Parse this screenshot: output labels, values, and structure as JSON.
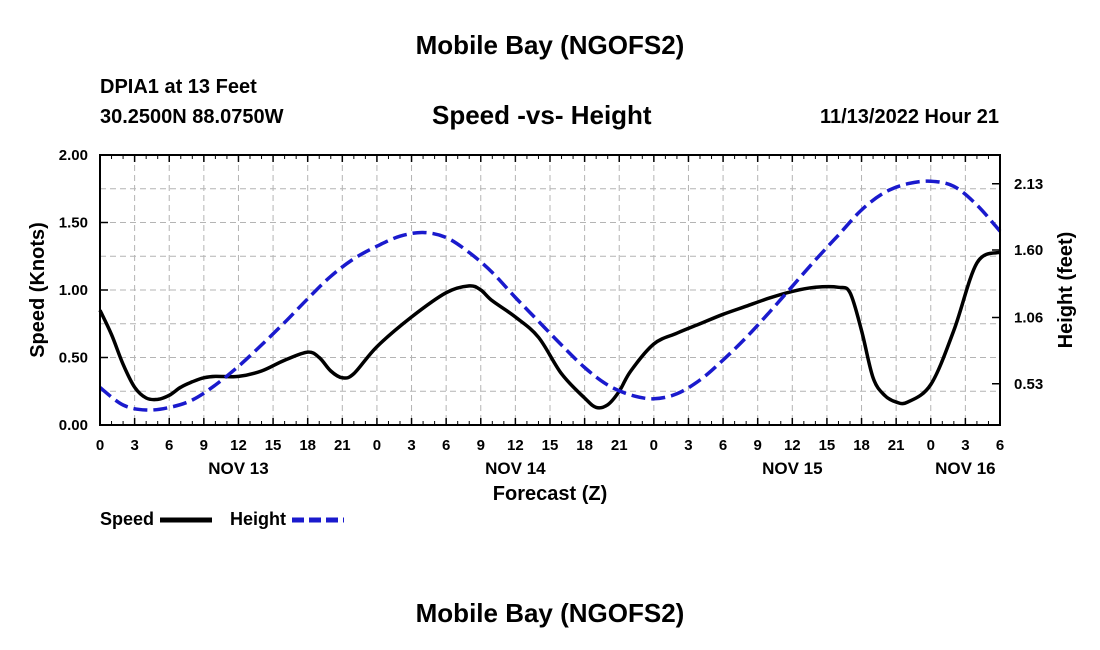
{
  "header": {
    "title": "Mobile Bay (NGOFS2)",
    "station": "DPIA1 at 13 Feet",
    "coords": "30.2500N  88.0750W",
    "subtitle": "Speed -vs- Height",
    "datetime": "11/13/2022 Hour 21"
  },
  "footer": {
    "title": "Mobile Bay (NGOFS2)"
  },
  "chart_data": {
    "type": "line",
    "xlabel": "Forecast (Z)",
    "ylabel": "Speed (Knots)",
    "y2label": "Height (feet)",
    "x_unit": "hours since NOV 13 00Z",
    "xlim": [
      0,
      78
    ],
    "ylim": [
      0,
      2.0
    ],
    "y2lim": [
      0.2,
      2.36
    ],
    "grid": true,
    "x_tick_hours": [
      0,
      3,
      6,
      9,
      12,
      15,
      18,
      21,
      24,
      27,
      30,
      33,
      36,
      39,
      42,
      45,
      48,
      51,
      54,
      57,
      60,
      63,
      66,
      69,
      72,
      75,
      78
    ],
    "x_tick_labels": [
      "0",
      "3",
      "6",
      "9",
      "12",
      "15",
      "18",
      "21",
      "0",
      "3",
      "6",
      "9",
      "12",
      "15",
      "18",
      "21",
      "0",
      "3",
      "6",
      "9",
      "12",
      "15",
      "18",
      "21",
      "0",
      "3",
      "6"
    ],
    "day_labels": [
      {
        "hour": 12,
        "label": "NOV 13"
      },
      {
        "hour": 36,
        "label": "NOV 14"
      },
      {
        "hour": 60,
        "label": "NOV 15"
      },
      {
        "hour": 75,
        "label": "NOV 16"
      }
    ],
    "y_ticks": [
      "0.00",
      "0.50",
      "1.00",
      "1.50",
      "2.00"
    ],
    "y2_ticks": [
      "0.53",
      "1.06",
      "1.60",
      "2.13"
    ],
    "legend": {
      "placement": "bottom-left"
    },
    "series": [
      {
        "name": "Speed",
        "axis": "left",
        "color": "#000000",
        "dash": "solid",
        "x": [
          0,
          1,
          2,
          3,
          4,
          5,
          6,
          7,
          8,
          9,
          10,
          12,
          14,
          16,
          18,
          19,
          20,
          21,
          22,
          24,
          27,
          30,
          32,
          33,
          34,
          36,
          38,
          40,
          42,
          43,
          44,
          45,
          46,
          48,
          50,
          52,
          54,
          56,
          58,
          60,
          62,
          64,
          65,
          66,
          67,
          68,
          69,
          70,
          72,
          74,
          76,
          78
        ],
        "y": [
          0.85,
          0.67,
          0.45,
          0.28,
          0.2,
          0.19,
          0.22,
          0.28,
          0.32,
          0.35,
          0.36,
          0.36,
          0.4,
          0.48,
          0.54,
          0.5,
          0.4,
          0.35,
          0.38,
          0.58,
          0.8,
          0.98,
          1.03,
          1.0,
          0.92,
          0.8,
          0.65,
          0.38,
          0.2,
          0.13,
          0.15,
          0.25,
          0.4,
          0.6,
          0.68,
          0.75,
          0.82,
          0.88,
          0.94,
          0.99,
          1.02,
          1.02,
          0.98,
          0.7,
          0.35,
          0.22,
          0.17,
          0.17,
          0.3,
          0.7,
          1.2,
          1.28
        ]
      },
      {
        "name": "Height",
        "axis": "right",
        "color": "#1a1acd",
        "dash": "dashed",
        "x": [
          0,
          2,
          4,
          6,
          8,
          10,
          12,
          14,
          16,
          18,
          20,
          22,
          24,
          26,
          28,
          30,
          32,
          34,
          36,
          38,
          40,
          42,
          44,
          46,
          48,
          50,
          52,
          54,
          56,
          58,
          60,
          62,
          64,
          66,
          68,
          70,
          72,
          74,
          76,
          78
        ],
        "y": [
          0.5,
          0.36,
          0.32,
          0.34,
          0.4,
          0.52,
          0.67,
          0.84,
          1.02,
          1.21,
          1.39,
          1.53,
          1.63,
          1.71,
          1.74,
          1.7,
          1.58,
          1.42,
          1.22,
          1.03,
          0.84,
          0.66,
          0.52,
          0.44,
          0.41,
          0.45,
          0.56,
          0.72,
          0.9,
          1.1,
          1.31,
          1.52,
          1.72,
          1.92,
          2.06,
          2.13,
          2.15,
          2.11,
          1.96,
          1.75
        ]
      }
    ]
  },
  "legend_items": [
    {
      "label": "Speed"
    },
    {
      "label": "Height"
    }
  ],
  "colors": {
    "speed": "#000000",
    "height": "#1a1acd",
    "grid": "#b4b4b4"
  }
}
